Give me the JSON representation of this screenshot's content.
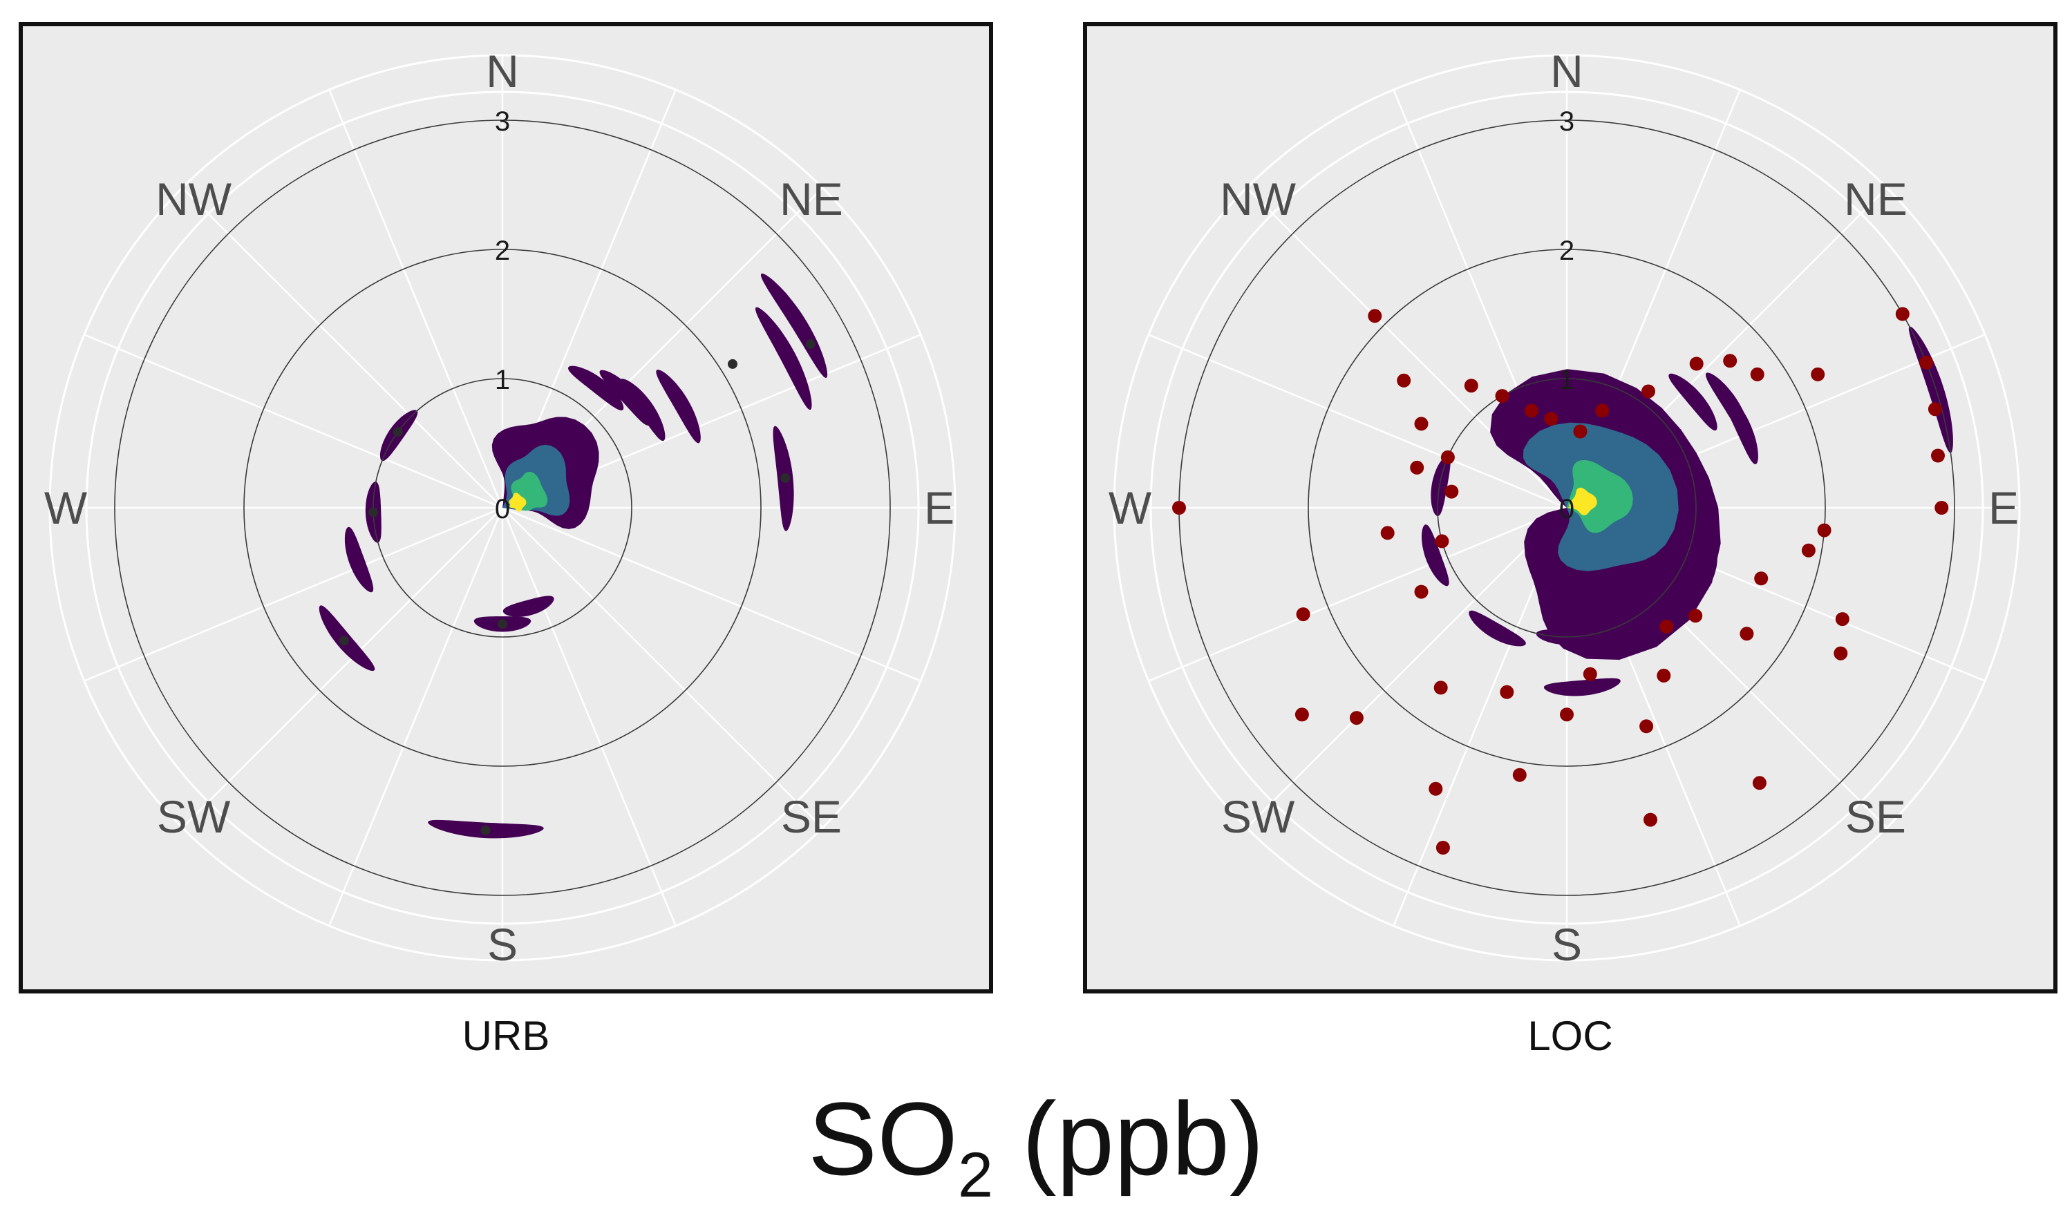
{
  "figure": {
    "title": {
      "prefix": "SO",
      "subscript": "2",
      "suffix": " (ppb)"
    }
  },
  "chart_data": [
    {
      "type": "polar-contour",
      "strip_label": "URB",
      "radial_ticks": [
        "0",
        "1",
        "2",
        "3"
      ],
      "radial_range": [
        0,
        3.3
      ],
      "directions": [
        "N",
        "NE",
        "E",
        "SE",
        "S",
        "SW",
        "W",
        "NW"
      ],
      "grid": true,
      "colors": {
        "level1": "#440154",
        "level2": "#31688e",
        "level3": "#35b779",
        "level4": "#fde725",
        "points": "#2b2b2b"
      },
      "contour_levels": [
        {
          "level": 1,
          "bearing": 50,
          "speed": 0.35,
          "spread_speed": 0.55,
          "spread_deg": 55
        },
        {
          "level": 2,
          "bearing": 55,
          "speed": 0.25,
          "spread_speed": 0.38,
          "spread_deg": 45
        },
        {
          "level": 3,
          "bearing": 60,
          "speed": 0.22,
          "spread_speed": 0.16,
          "spread_deg": 35
        },
        {
          "level": 4,
          "bearing": 70,
          "speed": 0.12,
          "spread_speed": 0.07,
          "spread_deg": 30
        }
      ],
      "streaks": [
        {
          "bearing": 38,
          "speed": 1.2
        },
        {
          "bearing": 48,
          "speed": 1.3
        },
        {
          "bearing": 55,
          "speed": 1.35
        },
        {
          "bearing": 60,
          "speed": 1.6
        },
        {
          "bearing": 62,
          "speed": 2.5
        },
        {
          "bearing": 58,
          "speed": 2.7
        },
        {
          "bearing": 84,
          "speed": 2.2
        },
        {
          "bearing": 180,
          "speed": 0.9
        },
        {
          "bearing": 165,
          "speed": 0.8
        },
        {
          "bearing": 230,
          "speed": 1.6
        },
        {
          "bearing": 183,
          "speed": 2.5
        },
        {
          "bearing": 305,
          "speed": 1.0
        },
        {
          "bearing": 250,
          "speed": 1.2
        },
        {
          "bearing": 268,
          "speed": 1.0
        }
      ],
      "points": [
        {
          "bearing": 62,
          "speed": 2.7
        },
        {
          "bearing": 58,
          "speed": 2.1
        },
        {
          "bearing": 84,
          "speed": 2.2
        },
        {
          "bearing": 180,
          "speed": 0.9
        },
        {
          "bearing": 230,
          "speed": 1.6
        },
        {
          "bearing": 183,
          "speed": 2.5
        },
        {
          "bearing": 268,
          "speed": 1.0
        },
        {
          "bearing": 306,
          "speed": 1.0
        }
      ]
    },
    {
      "type": "polar-contour",
      "strip_label": "LOC",
      "radial_ticks": [
        "0",
        "1",
        "2",
        "3"
      ],
      "radial_range": [
        0,
        3.3
      ],
      "directions": [
        "N",
        "NE",
        "E",
        "SE",
        "S",
        "SW",
        "W",
        "NW"
      ],
      "grid": true,
      "colors": {
        "level1": "#440154",
        "level2": "#31688e",
        "level3": "#35b779",
        "level4": "#fde725",
        "points": "#8b0000"
      },
      "contour_levels": [
        {
          "level": 1,
          "bearing": 90,
          "speed": 0.15,
          "spread_speed": 1.2,
          "spread_deg": 150
        },
        {
          "level": 2,
          "bearing": 70,
          "speed": 0.25,
          "spread_speed": 0.62,
          "spread_deg": 110
        },
        {
          "level": 3,
          "bearing": 70,
          "speed": 0.2,
          "spread_speed": 0.32,
          "spread_deg": 60
        },
        {
          "level": 4,
          "bearing": 70,
          "speed": 0.12,
          "spread_speed": 0.12,
          "spread_deg": 40
        }
      ],
      "streaks": [
        {
          "bearing": 50,
          "speed": 1.3
        },
        {
          "bearing": 58,
          "speed": 1.5
        },
        {
          "bearing": 65,
          "speed": 1.5
        },
        {
          "bearing": 120,
          "speed": 1.2
        },
        {
          "bearing": 150,
          "speed": 1.0
        },
        {
          "bearing": 180,
          "speed": 1.0
        },
        {
          "bearing": 210,
          "speed": 1.1
        },
        {
          "bearing": 250,
          "speed": 1.1
        },
        {
          "bearing": 280,
          "speed": 1.0
        },
        {
          "bearing": 72,
          "speed": 3.0
        },
        {
          "bearing": 175,
          "speed": 1.4
        }
      ],
      "points": [
        {
          "bearing": 35,
          "speed": 1.1
        },
        {
          "bearing": 42,
          "speed": 1.5
        },
        {
          "bearing": 48,
          "speed": 1.7
        },
        {
          "bearing": 55,
          "speed": 1.8
        },
        {
          "bearing": 62,
          "speed": 2.2
        },
        {
          "bearing": 60,
          "speed": 3.0
        },
        {
          "bearing": 68,
          "speed": 3.0
        },
        {
          "bearing": 75,
          "speed": 2.95
        },
        {
          "bearing": 82,
          "speed": 2.9
        },
        {
          "bearing": 90,
          "speed": 2.9
        },
        {
          "bearing": 95,
          "speed": 2.0
        },
        {
          "bearing": 100,
          "speed": 1.9
        },
        {
          "bearing": 110,
          "speed": 1.6
        },
        {
          "bearing": 118,
          "speed": 2.4
        },
        {
          "bearing": 125,
          "speed": 1.7
        },
        {
          "bearing": 130,
          "speed": 1.3
        },
        {
          "bearing": 140,
          "speed": 1.2
        },
        {
          "bearing": 150,
          "speed": 1.5
        },
        {
          "bearing": 160,
          "speed": 1.8
        },
        {
          "bearing": 165,
          "speed": 2.5
        },
        {
          "bearing": 172,
          "speed": 1.3
        },
        {
          "bearing": 180,
          "speed": 1.6
        },
        {
          "bearing": 190,
          "speed": 2.1
        },
        {
          "bearing": 198,
          "speed": 1.5
        },
        {
          "bearing": 205,
          "speed": 2.4
        },
        {
          "bearing": 215,
          "speed": 1.7
        },
        {
          "bearing": 225,
          "speed": 2.3
        },
        {
          "bearing": 232,
          "speed": 2.6
        },
        {
          "bearing": 240,
          "speed": 1.3
        },
        {
          "bearing": 248,
          "speed": 2.2
        },
        {
          "bearing": 255,
          "speed": 1.0
        },
        {
          "bearing": 262,
          "speed": 1.4
        },
        {
          "bearing": 270,
          "speed": 3.0
        },
        {
          "bearing": 278,
          "speed": 0.9
        },
        {
          "bearing": 285,
          "speed": 1.2
        },
        {
          "bearing": 293,
          "speed": 1.0
        },
        {
          "bearing": 300,
          "speed": 1.3
        },
        {
          "bearing": 308,
          "speed": 1.6
        },
        {
          "bearing": 315,
          "speed": 2.1
        },
        {
          "bearing": 322,
          "speed": 1.2
        },
        {
          "bearing": 330,
          "speed": 1.0
        },
        {
          "bearing": 340,
          "speed": 0.8
        },
        {
          "bearing": 350,
          "speed": 0.7
        },
        {
          "bearing": 20,
          "speed": 0.8
        },
        {
          "bearing": 10,
          "speed": 0.6
        },
        {
          "bearing": 145,
          "speed": 2.6
        },
        {
          "bearing": 112,
          "speed": 2.3
        },
        {
          "bearing": 200,
          "speed": 2.8
        }
      ]
    }
  ]
}
